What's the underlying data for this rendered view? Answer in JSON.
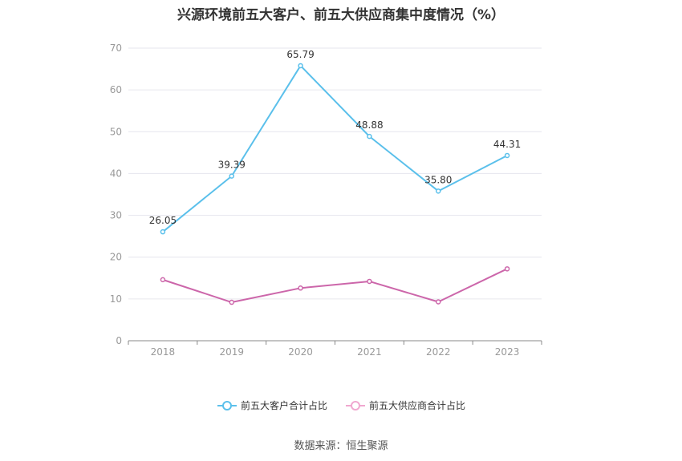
{
  "chart_data": {
    "type": "line",
    "title": "兴源环境前五大客户、前五大供应商集中度情况（%）",
    "categories": [
      "2018",
      "2019",
      "2020",
      "2021",
      "2022",
      "2023"
    ],
    "series": [
      {
        "name": "前五大客户合计占比",
        "values": [
          26.05,
          39.39,
          65.79,
          48.88,
          35.8,
          44.31
        ],
        "labels": [
          "26.05",
          "39.39",
          "65.79",
          "48.88",
          "35.80",
          "44.31"
        ],
        "color": "#5bc0eb"
      },
      {
        "name": "前五大供应商合计占比",
        "values": [
          14.6,
          9.2,
          12.6,
          14.2,
          9.3,
          17.2
        ],
        "labels": [],
        "color": "#cc66aa"
      }
    ],
    "ylim": [
      0,
      70
    ],
    "yticks": [
      0,
      10,
      20,
      30,
      40,
      50,
      60,
      70
    ],
    "grid": true,
    "legend": "bottom"
  },
  "source": "数据来源：恒生聚源"
}
